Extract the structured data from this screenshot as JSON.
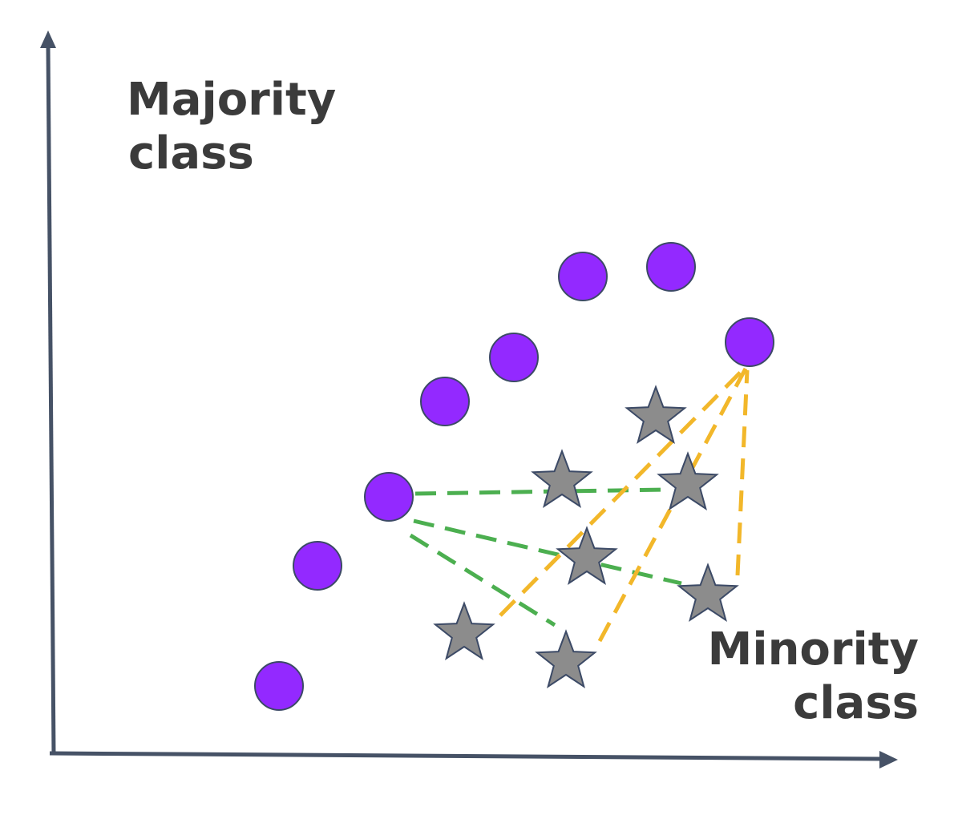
{
  "labels": {
    "majority_line1": "Majority",
    "majority_line2": "class",
    "minority_line1": "Minority",
    "minority_line2": "class"
  },
  "colors": {
    "axis": "#465266",
    "majority_fill": "#9329ff",
    "minority_fill": "#8c8c8c",
    "outline": "#3c4a66",
    "green_link": "#4caf50",
    "orange_link": "#f2b72a",
    "label_text": "#3b3b3b"
  },
  "icons": {
    "majority_marker": "circle",
    "minority_marker": "star"
  }
}
